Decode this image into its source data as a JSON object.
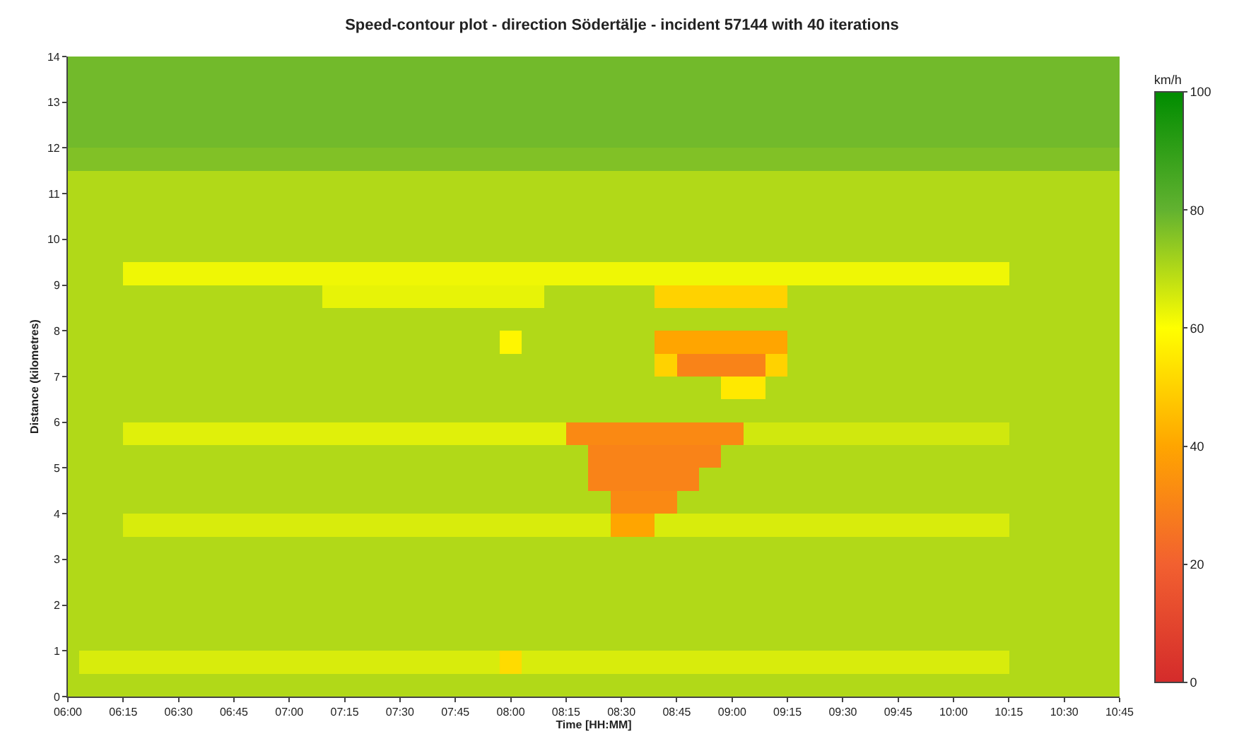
{
  "chart_data": {
    "type": "heatmap",
    "title": "Speed-contour plot - direction Södertälje - incident 57144 with 40 iterations",
    "xlabel": "Time [HH:MM]",
    "ylabel": "Distance (kilometres)",
    "clabel": "km/h",
    "x": [
      6,
      6.1,
      6.2,
      6.3,
      6.4,
      6.5,
      6.6,
      6.7,
      6.8,
      6.9,
      7,
      7.1,
      7.2,
      7.3,
      7.4,
      7.5,
      7.6,
      7.7,
      7.8,
      7.9,
      8,
      8.1,
      8.2,
      8.3,
      8.4,
      8.5,
      8.6,
      8.7,
      8.8,
      8.9,
      9,
      9.1,
      9.2,
      9.3,
      9.4,
      9.5,
      9.6,
      9.7,
      9.8,
      9.9,
      10,
      10.1,
      10.2,
      10.3,
      10.4,
      10.5,
      10.6,
      10.7
    ],
    "y": [
      13.75,
      13.25,
      12.75,
      12.25,
      11.75,
      11.25,
      10.75,
      10.25,
      9.75,
      9.25,
      8.75,
      8.25,
      7.75,
      7.25,
      6.75,
      6.25,
      5.75,
      5.25,
      4.75,
      4.25,
      3.75,
      3.25,
      2.75,
      2.25,
      1.75,
      1.25,
      0.75,
      0.25
    ],
    "xlim": [
      6,
      10.75
    ],
    "xticks": [
      {
        "value": 6,
        "label": "06:00"
      },
      {
        "value": 6.25,
        "label": "06:15"
      },
      {
        "value": 6.5,
        "label": "06:30"
      },
      {
        "value": 6.75,
        "label": "06:45"
      },
      {
        "value": 7,
        "label": "07:00"
      },
      {
        "value": 7.25,
        "label": "07:15"
      },
      {
        "value": 7.5,
        "label": "07:30"
      },
      {
        "value": 7.75,
        "label": "07:45"
      },
      {
        "value": 8,
        "label": "08:00"
      },
      {
        "value": 8.25,
        "label": "08:15"
      },
      {
        "value": 8.5,
        "label": "08:30"
      },
      {
        "value": 8.75,
        "label": "08:45"
      },
      {
        "value": 9,
        "label": "09:00"
      },
      {
        "value": 9.25,
        "label": "09:15"
      },
      {
        "value": 9.5,
        "label": "09:30"
      },
      {
        "value": 9.75,
        "label": "09:45"
      },
      {
        "value": 10,
        "label": "10:00"
      },
      {
        "value": 10.25,
        "label": "10:15"
      },
      {
        "value": 10.5,
        "label": "10:30"
      },
      {
        "value": 10.75,
        "label": "10:45"
      }
    ],
    "ylim": [
      0,
      14
    ],
    "yticks": [
      0,
      1,
      2,
      3,
      4,
      5,
      6,
      7,
      8,
      9,
      10,
      11,
      12,
      13,
      14
    ],
    "clim": [
      0,
      100
    ],
    "cticks": [
      0,
      20,
      40,
      60,
      80,
      100
    ],
    "cells": [
      [
        78,
        78,
        78,
        78,
        78,
        78,
        78,
        78,
        78,
        78,
        78,
        78,
        78,
        78,
        78,
        78,
        78,
        78,
        78,
        78,
        78,
        78,
        78,
        78,
        78,
        78,
        78,
        78,
        78,
        78,
        78,
        78,
        78,
        78,
        78,
        78,
        78,
        78,
        78,
        78,
        78,
        78,
        78,
        78,
        78,
        78,
        78,
        78
      ],
      [
        78,
        78,
        78,
        78,
        78,
        78,
        78,
        78,
        78,
        78,
        78,
        78,
        78,
        78,
        78,
        78,
        78,
        78,
        78,
        78,
        78,
        78,
        78,
        78,
        78,
        78,
        78,
        78,
        78,
        78,
        78,
        78,
        78,
        78,
        78,
        78,
        78,
        78,
        78,
        78,
        78,
        78,
        78,
        78,
        78,
        78,
        78,
        78
      ],
      [
        78,
        78,
        78,
        78,
        78,
        78,
        78,
        78,
        78,
        78,
        78,
        78,
        78,
        78,
        78,
        78,
        78,
        78,
        78,
        78,
        78,
        78,
        78,
        78,
        78,
        78,
        78,
        78,
        78,
        78,
        78,
        78,
        78,
        78,
        78,
        78,
        78,
        78,
        78,
        78,
        78,
        78,
        78,
        78,
        78,
        78,
        78,
        78
      ],
      [
        78,
        78,
        78,
        78,
        78,
        78,
        78,
        78,
        78,
        78,
        78,
        78,
        78,
        78,
        78,
        78,
        78,
        78,
        78,
        78,
        78,
        78,
        78,
        78,
        78,
        78,
        78,
        78,
        78,
        78,
        78,
        78,
        78,
        78,
        78,
        78,
        78,
        78,
        78,
        78,
        78,
        78,
        78,
        78,
        78,
        78,
        78,
        78
      ],
      [
        76,
        76,
        76,
        76,
        76,
        76,
        76,
        76,
        76,
        76,
        76,
        76,
        76,
        76,
        76,
        76,
        76,
        76,
        76,
        76,
        76,
        76,
        76,
        76,
        76,
        76,
        76,
        76,
        76,
        76,
        76,
        76,
        76,
        76,
        76,
        76,
        76,
        76,
        76,
        76,
        76,
        76,
        76,
        76,
        76,
        76,
        76,
        76
      ],
      [
        70,
        70,
        70,
        70,
        70,
        70,
        70,
        70,
        70,
        70,
        70,
        70,
        70,
        70,
        70,
        70,
        70,
        70,
        70,
        70,
        70,
        70,
        70,
        70,
        70,
        70,
        70,
        70,
        70,
        70,
        70,
        70,
        70,
        70,
        70,
        70,
        70,
        70,
        70,
        70,
        70,
        70,
        70,
        70,
        70,
        70,
        70,
        70
      ],
      [
        70,
        70,
        70,
        70,
        70,
        70,
        70,
        70,
        70,
        70,
        70,
        70,
        70,
        70,
        70,
        70,
        70,
        70,
        70,
        70,
        70,
        70,
        70,
        70,
        70,
        70,
        70,
        70,
        70,
        70,
        70,
        70,
        70,
        70,
        70,
        70,
        70,
        70,
        70,
        70,
        70,
        70,
        70,
        70,
        70,
        70,
        70,
        70
      ],
      [
        70,
        70,
        70,
        70,
        70,
        70,
        70,
        70,
        70,
        70,
        70,
        70,
        70,
        70,
        70,
        70,
        70,
        70,
        70,
        70,
        70,
        70,
        70,
        70,
        70,
        70,
        70,
        70,
        70,
        70,
        70,
        70,
        70,
        70,
        70,
        70,
        70,
        70,
        70,
        70,
        70,
        70,
        70,
        70,
        70,
        70,
        70,
        70
      ],
      [
        70,
        70,
        70,
        70,
        70,
        70,
        70,
        70,
        70,
        70,
        70,
        70,
        70,
        70,
        70,
        70,
        70,
        70,
        70,
        70,
        70,
        70,
        70,
        70,
        70,
        70,
        70,
        70,
        70,
        70,
        70,
        70,
        70,
        70,
        70,
        70,
        70,
        70,
        70,
        70,
        70,
        70,
        70,
        70,
        70,
        70,
        70,
        70
      ],
      [
        70,
        70,
        70,
        62,
        62,
        62,
        62,
        62,
        62,
        62,
        62,
        62,
        62,
        62,
        62,
        62,
        62,
        62,
        62,
        62,
        62,
        62,
        62,
        62,
        62,
        62,
        62,
        62,
        62,
        62,
        62,
        62,
        62,
        62,
        62,
        62,
        62,
        62,
        62,
        62,
        62,
        62,
        62,
        70,
        70,
        70,
        70,
        70
      ],
      [
        70,
        70,
        70,
        70,
        70,
        70,
        70,
        70,
        70,
        70,
        70,
        70,
        63,
        63,
        63,
        63,
        63,
        63,
        63,
        63,
        63,
        63,
        70,
        70,
        70,
        70,
        70,
        50,
        50,
        50,
        50,
        50,
        50,
        70,
        70,
        70,
        70,
        70,
        70,
        70,
        70,
        70,
        70,
        70,
        70,
        70,
        70,
        70
      ],
      [
        70,
        70,
        70,
        70,
        70,
        70,
        70,
        70,
        70,
        70,
        70,
        70,
        70,
        70,
        70,
        70,
        70,
        70,
        70,
        70,
        70,
        70,
        70,
        70,
        70,
        70,
        70,
        70,
        70,
        70,
        70,
        70,
        70,
        70,
        70,
        70,
        70,
        70,
        70,
        70,
        70,
        70,
        70,
        70,
        70,
        70,
        70,
        70
      ],
      [
        70,
        70,
        70,
        70,
        70,
        70,
        70,
        70,
        70,
        70,
        70,
        70,
        70,
        70,
        70,
        70,
        70,
        70,
        70,
        70,
        58,
        70,
        70,
        70,
        70,
        70,
        70,
        40,
        40,
        40,
        40,
        40,
        40,
        70,
        70,
        70,
        70,
        70,
        70,
        70,
        70,
        70,
        70,
        70,
        70,
        70,
        70,
        70
      ],
      [
        70,
        70,
        70,
        70,
        70,
        70,
        70,
        70,
        70,
        70,
        70,
        70,
        70,
        70,
        70,
        70,
        70,
        70,
        70,
        70,
        70,
        70,
        70,
        70,
        70,
        70,
        70,
        50,
        30,
        30,
        30,
        30,
        50,
        70,
        70,
        70,
        70,
        70,
        70,
        70,
        70,
        70,
        70,
        70,
        70,
        70,
        70,
        70
      ],
      [
        70,
        70,
        70,
        70,
        70,
        70,
        70,
        70,
        70,
        70,
        70,
        70,
        70,
        70,
        70,
        70,
        70,
        70,
        70,
        70,
        70,
        70,
        70,
        70,
        70,
        70,
        70,
        70,
        70,
        70,
        55,
        55,
        70,
        70,
        70,
        70,
        70,
        70,
        70,
        70,
        70,
        70,
        70,
        70,
        70,
        70,
        70,
        70
      ],
      [
        70,
        70,
        70,
        70,
        70,
        70,
        70,
        70,
        70,
        70,
        70,
        70,
        70,
        70,
        70,
        70,
        70,
        70,
        70,
        70,
        70,
        70,
        70,
        70,
        70,
        70,
        70,
        70,
        70,
        70,
        70,
        70,
        70,
        70,
        70,
        70,
        70,
        70,
        70,
        70,
        70,
        70,
        70,
        70,
        70,
        70,
        70,
        70
      ],
      [
        70,
        70,
        70,
        64,
        64,
        64,
        64,
        64,
        64,
        64,
        64,
        64,
        64,
        64,
        64,
        64,
        64,
        64,
        64,
        64,
        64,
        64,
        64,
        32,
        32,
        32,
        32,
        32,
        32,
        32,
        32,
        66,
        66,
        66,
        66,
        66,
        66,
        66,
        66,
        66,
        66,
        66,
        66,
        70,
        70,
        70,
        70,
        70
      ],
      [
        70,
        70,
        70,
        70,
        70,
        70,
        70,
        70,
        70,
        70,
        70,
        70,
        70,
        70,
        70,
        70,
        70,
        70,
        70,
        70,
        70,
        70,
        70,
        70,
        30,
        30,
        30,
        30,
        30,
        30,
        70,
        70,
        70,
        70,
        70,
        70,
        70,
        70,
        70,
        70,
        70,
        70,
        70,
        70,
        70,
        70,
        70,
        70
      ],
      [
        70,
        70,
        70,
        70,
        70,
        70,
        70,
        70,
        70,
        70,
        70,
        70,
        70,
        70,
        70,
        70,
        70,
        70,
        70,
        70,
        70,
        70,
        70,
        70,
        30,
        30,
        30,
        30,
        30,
        70,
        70,
        70,
        70,
        70,
        70,
        70,
        70,
        70,
        70,
        70,
        70,
        70,
        70,
        70,
        70,
        70,
        70,
        70
      ],
      [
        70,
        70,
        70,
        70,
        70,
        70,
        70,
        70,
        70,
        70,
        70,
        70,
        70,
        70,
        70,
        70,
        70,
        70,
        70,
        70,
        70,
        70,
        70,
        70,
        70,
        32,
        32,
        32,
        70,
        70,
        70,
        70,
        70,
        70,
        70,
        70,
        70,
        70,
        70,
        70,
        70,
        70,
        70,
        70,
        70,
        70,
        70,
        70
      ],
      [
        70,
        70,
        70,
        65,
        65,
        65,
        65,
        65,
        65,
        65,
        65,
        65,
        65,
        65,
        65,
        65,
        65,
        65,
        65,
        65,
        65,
        65,
        65,
        65,
        65,
        40,
        40,
        65,
        65,
        65,
        65,
        65,
        65,
        65,
        65,
        65,
        65,
        65,
        65,
        65,
        65,
        65,
        65,
        70,
        70,
        70,
        70,
        70
      ],
      [
        70,
        70,
        70,
        70,
        70,
        70,
        70,
        70,
        70,
        70,
        70,
        70,
        70,
        70,
        70,
        70,
        70,
        70,
        70,
        70,
        70,
        70,
        70,
        70,
        70,
        70,
        70,
        70,
        70,
        70,
        70,
        70,
        70,
        70,
        70,
        70,
        70,
        70,
        70,
        70,
        70,
        70,
        70,
        70,
        70,
        70,
        70,
        70
      ],
      [
        70,
        70,
        70,
        70,
        70,
        70,
        70,
        70,
        70,
        70,
        70,
        70,
        70,
        70,
        70,
        70,
        70,
        70,
        70,
        70,
        70,
        70,
        70,
        70,
        70,
        70,
        70,
        70,
        70,
        70,
        70,
        70,
        70,
        70,
        70,
        70,
        70,
        70,
        70,
        70,
        70,
        70,
        70,
        70,
        70,
        70,
        70,
        70
      ],
      [
        70,
        70,
        70,
        70,
        70,
        70,
        70,
        70,
        70,
        70,
        70,
        70,
        70,
        70,
        70,
        70,
        70,
        70,
        70,
        70,
        70,
        70,
        70,
        70,
        70,
        70,
        70,
        70,
        70,
        70,
        70,
        70,
        70,
        70,
        70,
        70,
        70,
        70,
        70,
        70,
        70,
        70,
        70,
        70,
        70,
        70,
        70,
        70
      ],
      [
        70,
        70,
        70,
        70,
        70,
        70,
        70,
        70,
        70,
        70,
        70,
        70,
        70,
        70,
        70,
        70,
        70,
        70,
        70,
        70,
        70,
        70,
        70,
        70,
        70,
        70,
        70,
        70,
        70,
        70,
        70,
        70,
        70,
        70,
        70,
        70,
        70,
        70,
        70,
        70,
        70,
        70,
        70,
        70,
        70,
        70,
        70,
        70
      ],
      [
        70,
        70,
        70,
        70,
        70,
        70,
        70,
        70,
        70,
        70,
        70,
        70,
        70,
        70,
        70,
        70,
        70,
        70,
        70,
        70,
        70,
        70,
        70,
        70,
        70,
        70,
        70,
        70,
        70,
        70,
        70,
        70,
        70,
        70,
        70,
        70,
        70,
        70,
        70,
        70,
        70,
        70,
        70,
        70,
        70,
        70,
        70,
        70
      ],
      [
        70,
        65,
        65,
        65,
        65,
        65,
        65,
        65,
        65,
        65,
        65,
        65,
        65,
        65,
        65,
        65,
        65,
        65,
        65,
        65,
        52,
        65,
        65,
        65,
        65,
        65,
        65,
        65,
        65,
        65,
        65,
        65,
        65,
        65,
        65,
        65,
        65,
        65,
        65,
        65,
        65,
        65,
        65,
        70,
        70,
        70,
        70,
        70
      ],
      [
        70,
        70,
        70,
        70,
        70,
        70,
        70,
        70,
        70,
        70,
        70,
        70,
        70,
        70,
        70,
        70,
        70,
        70,
        70,
        70,
        70,
        70,
        70,
        70,
        70,
        70,
        70,
        70,
        70,
        70,
        70,
        70,
        70,
        70,
        70,
        70,
        70,
        70,
        70,
        70,
        70,
        70,
        70,
        70,
        70,
        70,
        70,
        70
      ]
    ]
  }
}
